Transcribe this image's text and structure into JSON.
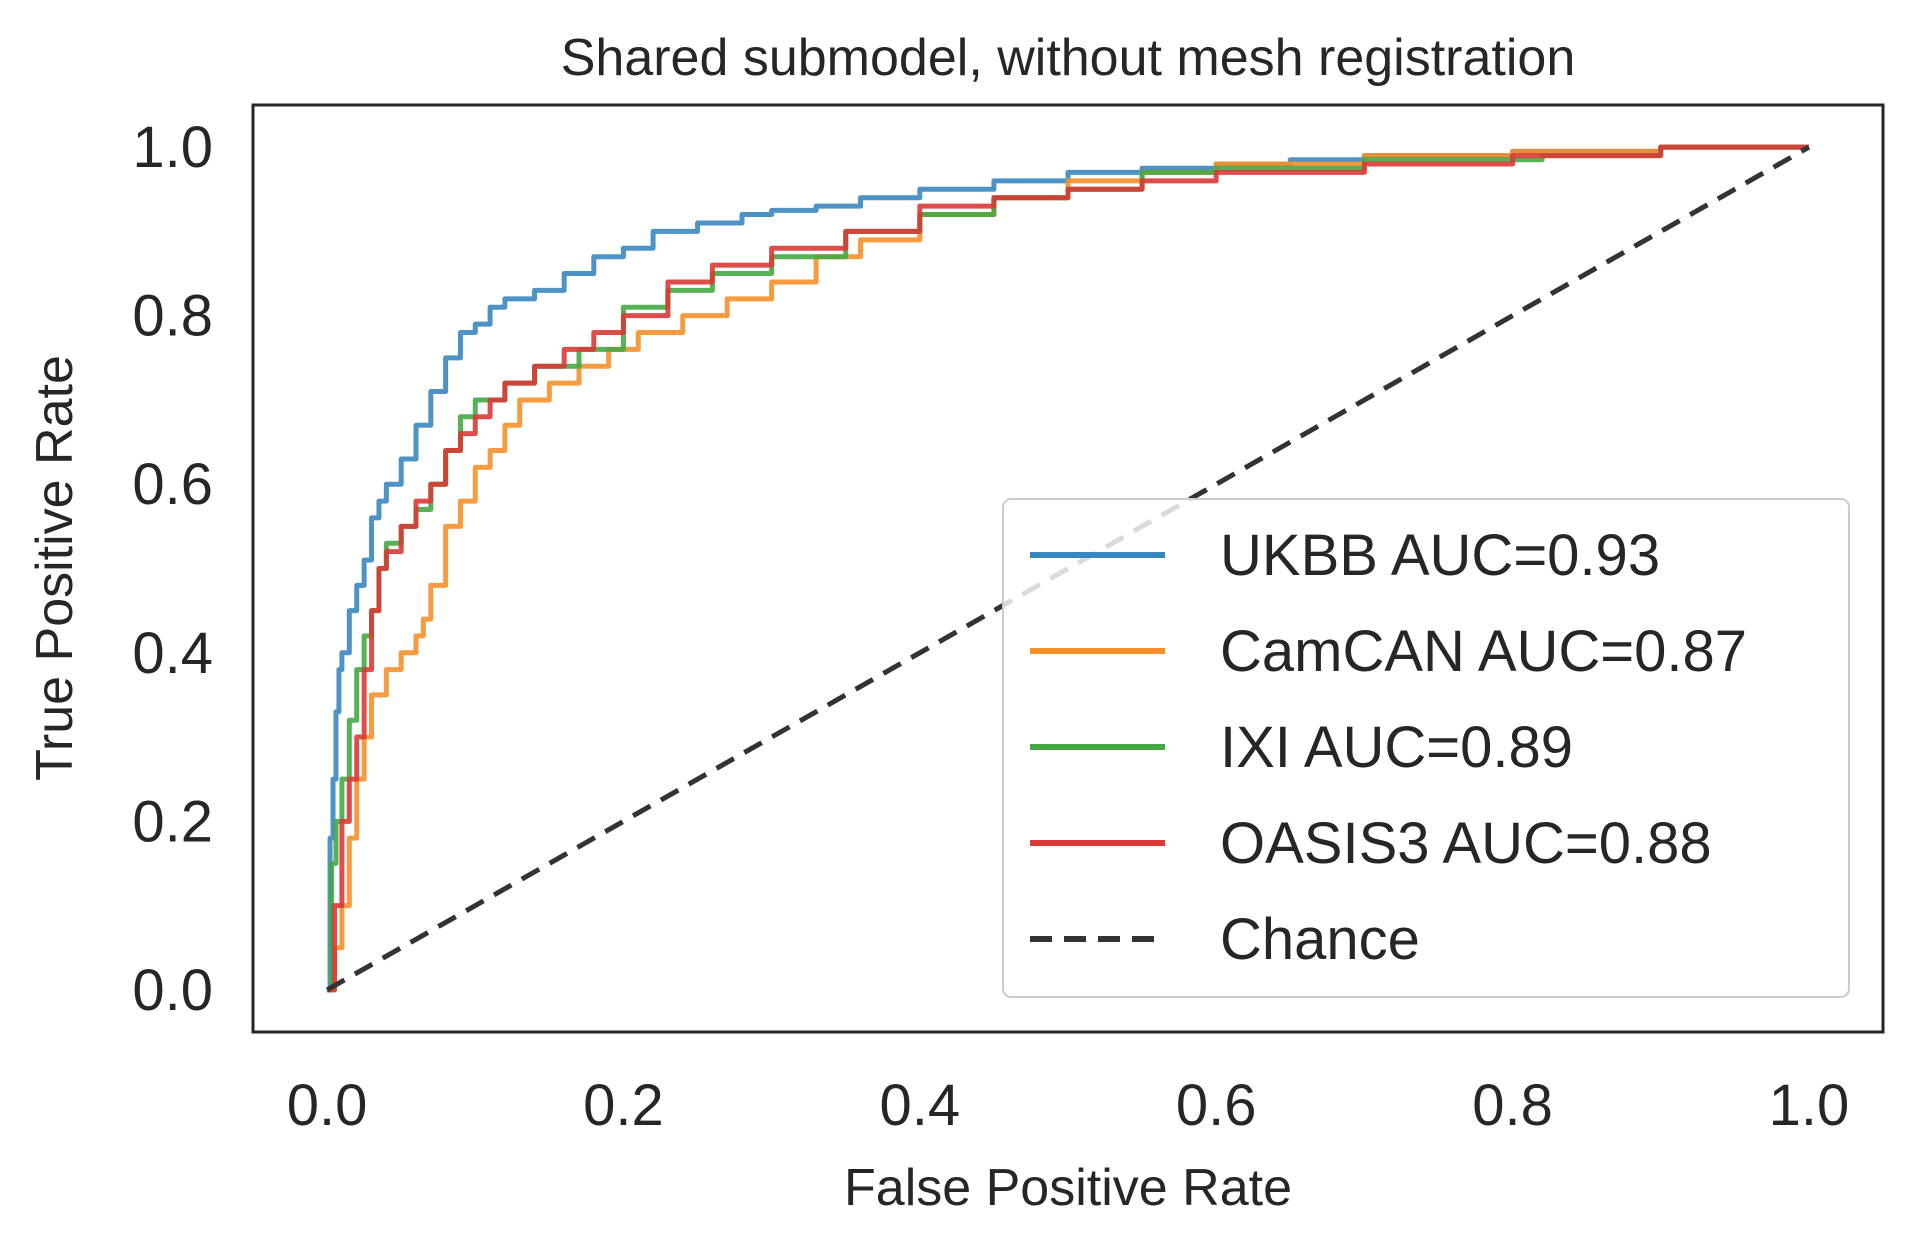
{
  "chart_data": {
    "type": "line",
    "title": "Shared submodel, without mesh registration",
    "xlabel": "False Positive Rate",
    "ylabel": "True Positive Rate",
    "xlim": [
      -0.05,
      1.05
    ],
    "ylim": [
      -0.05,
      1.05
    ],
    "xticks": [
      0.0,
      0.2,
      0.4,
      0.6,
      0.8,
      1.0
    ],
    "yticks": [
      0.0,
      0.2,
      0.4,
      0.6,
      0.8,
      1.0
    ],
    "xtick_labels": [
      "0.0",
      "0.2",
      "0.4",
      "0.6",
      "0.8",
      "1.0"
    ],
    "ytick_labels": [
      "0.0",
      "0.2",
      "0.4",
      "0.6",
      "0.8",
      "1.0"
    ],
    "grid": false,
    "legend_position": "lower-right",
    "series": [
      {
        "name": "UKBB AUC=0.93",
        "color": "#3a87c0",
        "style": "solid",
        "x": [
          0,
          0.002,
          0.004,
          0.006,
          0.008,
          0.01,
          0.015,
          0.02,
          0.025,
          0.03,
          0.035,
          0.04,
          0.05,
          0.06,
          0.07,
          0.08,
          0.09,
          0.1,
          0.11,
          0.12,
          0.14,
          0.16,
          0.18,
          0.2,
          0.22,
          0.25,
          0.28,
          0.3,
          0.33,
          0.36,
          0.4,
          0.45,
          0.5,
          0.55,
          0.6,
          0.65,
          0.7,
          0.8,
          0.9,
          1.0
        ],
        "y": [
          0,
          0.18,
          0.25,
          0.33,
          0.38,
          0.4,
          0.45,
          0.48,
          0.51,
          0.56,
          0.58,
          0.6,
          0.63,
          0.67,
          0.71,
          0.75,
          0.78,
          0.79,
          0.81,
          0.82,
          0.83,
          0.85,
          0.87,
          0.88,
          0.9,
          0.91,
          0.92,
          0.925,
          0.93,
          0.94,
          0.95,
          0.96,
          0.97,
          0.975,
          0.98,
          0.985,
          0.99,
          0.995,
          1.0,
          1.0
        ]
      },
      {
        "name": "CamCAN AUC=0.87",
        "color": "#f5902b",
        "style": "solid",
        "x": [
          0,
          0.005,
          0.01,
          0.015,
          0.02,
          0.025,
          0.03,
          0.04,
          0.05,
          0.06,
          0.065,
          0.07,
          0.08,
          0.09,
          0.1,
          0.11,
          0.12,
          0.13,
          0.15,
          0.17,
          0.19,
          0.21,
          0.24,
          0.27,
          0.3,
          0.33,
          0.36,
          0.4,
          0.45,
          0.5,
          0.55,
          0.6,
          0.7,
          0.8,
          0.9,
          1.0
        ],
        "y": [
          0,
          0.05,
          0.1,
          0.18,
          0.25,
          0.3,
          0.35,
          0.38,
          0.4,
          0.42,
          0.44,
          0.48,
          0.55,
          0.58,
          0.62,
          0.64,
          0.67,
          0.7,
          0.72,
          0.74,
          0.76,
          0.78,
          0.8,
          0.82,
          0.84,
          0.87,
          0.89,
          0.92,
          0.94,
          0.96,
          0.97,
          0.98,
          0.99,
          0.995,
          1.0,
          1.0
        ]
      },
      {
        "name": "IXI AUC=0.89",
        "color": "#45a844",
        "style": "solid",
        "x": [
          0,
          0.003,
          0.006,
          0.01,
          0.015,
          0.02,
          0.025,
          0.03,
          0.035,
          0.04,
          0.05,
          0.06,
          0.07,
          0.08,
          0.09,
          0.1,
          0.12,
          0.14,
          0.17,
          0.2,
          0.23,
          0.26,
          0.3,
          0.35,
          0.4,
          0.45,
          0.5,
          0.55,
          0.6,
          0.7,
          0.82,
          0.9,
          1.0
        ],
        "y": [
          0,
          0.15,
          0.2,
          0.25,
          0.32,
          0.38,
          0.42,
          0.45,
          0.5,
          0.53,
          0.55,
          0.57,
          0.6,
          0.64,
          0.68,
          0.7,
          0.72,
          0.74,
          0.76,
          0.81,
          0.83,
          0.85,
          0.87,
          0.9,
          0.92,
          0.94,
          0.95,
          0.97,
          0.975,
          0.985,
          0.99,
          1.0,
          1.0
        ]
      },
      {
        "name": "OASIS3 AUC=0.88",
        "color": "#d93a36",
        "style": "solid",
        "x": [
          0,
          0.005,
          0.01,
          0.015,
          0.02,
          0.025,
          0.03,
          0.035,
          0.04,
          0.05,
          0.06,
          0.07,
          0.08,
          0.09,
          0.1,
          0.11,
          0.12,
          0.14,
          0.16,
          0.18,
          0.2,
          0.23,
          0.26,
          0.3,
          0.35,
          0.4,
          0.45,
          0.5,
          0.55,
          0.6,
          0.7,
          0.8,
          0.9,
          1.0
        ],
        "y": [
          0,
          0.1,
          0.2,
          0.25,
          0.3,
          0.38,
          0.45,
          0.5,
          0.52,
          0.55,
          0.58,
          0.6,
          0.64,
          0.66,
          0.68,
          0.7,
          0.72,
          0.74,
          0.76,
          0.78,
          0.8,
          0.84,
          0.86,
          0.88,
          0.9,
          0.93,
          0.94,
          0.95,
          0.96,
          0.97,
          0.98,
          0.99,
          1.0,
          1.0
        ]
      },
      {
        "name": "Chance",
        "color": "#333333",
        "style": "dashed",
        "x": [
          0,
          1
        ],
        "y": [
          0,
          1
        ]
      }
    ]
  }
}
